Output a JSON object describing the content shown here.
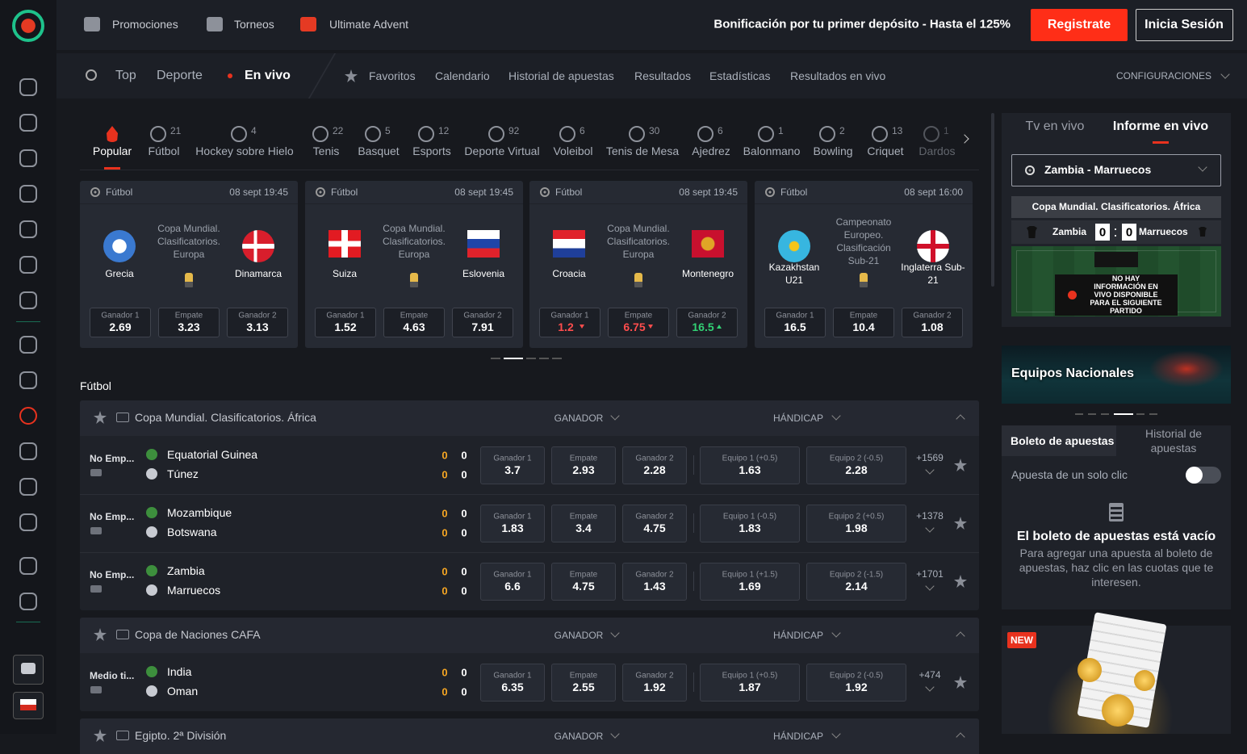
{
  "header": {
    "nav": [
      "Promociones",
      "Torneos",
      "Ultimate Advent"
    ],
    "bonus": "Bonificación por tu primer depósito - Hasta el 125%",
    "register": "Registrate",
    "login": "Inicia Sesión"
  },
  "subnav": {
    "main": [
      "Top",
      "Deporte",
      "En vivo"
    ],
    "links": [
      "Favoritos",
      "Calendario",
      "Historial de apuestas",
      "Resultados",
      "Estadísticas",
      "Resultados en vivo"
    ],
    "settings": "CONFIGURACIONES"
  },
  "sports": [
    {
      "name": "Popular"
    },
    {
      "name": "Fútbol",
      "count": 21
    },
    {
      "name": "Hockey sobre Hielo",
      "count": 4
    },
    {
      "name": "Tenis",
      "count": 22
    },
    {
      "name": "Basquet",
      "count": 5
    },
    {
      "name": "Esports",
      "count": 12
    },
    {
      "name": "Deporte Virtual",
      "count": 92
    },
    {
      "name": "Voleibol",
      "count": 6
    },
    {
      "name": "Tenis de Mesa",
      "count": 30
    },
    {
      "name": "Ajedrez",
      "count": 6
    },
    {
      "name": "Balonmano",
      "count": 1
    },
    {
      "name": "Bowling",
      "count": 2
    },
    {
      "name": "Criquet",
      "count": 13
    },
    {
      "name": "Dardos",
      "count": 1
    }
  ],
  "featured": [
    {
      "sport": "Fútbol",
      "date": "08 sept 19:45",
      "competition": "Copa Mundial. Clasificatorios. Europa",
      "team1": "Grecia",
      "team2": "Dinamarca",
      "odds": [
        {
          "label": "Ganador 1",
          "value": 2.69
        },
        {
          "label": "Empate",
          "value": 3.23
        },
        {
          "label": "Ganador 2",
          "value": 3.13
        }
      ]
    },
    {
      "sport": "Fútbol",
      "date": "08 sept 19:45",
      "competition": "Copa Mundial. Clasificatorios. Europa",
      "team1": "Suiza",
      "team2": "Eslovenia",
      "odds": [
        {
          "label": "Ganador 1",
          "value": 1.52
        },
        {
          "label": "Empate",
          "value": 4.63
        },
        {
          "label": "Ganador 2",
          "value": 7.91
        }
      ]
    },
    {
      "sport": "Fútbol",
      "date": "08 sept 19:45",
      "competition": "Copa Mundial. Clasificatorios. Europa",
      "team1": "Croacia",
      "team2": "Montenegro",
      "odds": [
        {
          "label": "Ganador 1",
          "value": 1.2,
          "trend": "down"
        },
        {
          "label": "Empate",
          "value": 6.75,
          "trend": "down"
        },
        {
          "label": "Ganador 2",
          "value": 16.5,
          "trend": "up"
        }
      ]
    },
    {
      "sport": "Fútbol",
      "date": "08 sept 16:00",
      "competition": "Campeonato Europeo. Clasificación Sub-21",
      "team1": "Kazakhstan U21",
      "team2": "Inglaterra Sub-21",
      "odds": [
        {
          "label": "Ganador 1",
          "value": 16.5
        },
        {
          "label": "Empate",
          "value": 10.4
        },
        {
          "label": "Ganador 2",
          "value": 1.08
        }
      ]
    }
  ],
  "section": "Fútbol",
  "leagues": [
    {
      "name": "Copa Mundial. Clasificatorios. África",
      "columns": [
        "GANADOR",
        "HÁNDICAP"
      ],
      "matches": [
        {
          "status": "No Emp...",
          "team1": "Equatorial Guinea",
          "team2": "Túnez",
          "score1": [
            0,
            0
          ],
          "score2": [
            0,
            0
          ],
          "odds": [
            {
              "label": "Ganador 1",
              "value": 3.7
            },
            {
              "label": "Empate",
              "value": 2.93
            },
            {
              "label": "Ganador 2",
              "value": 2.28
            },
            {
              "label": "Equipo 1 (+0.5)",
              "value": 1.63
            },
            {
              "label": "Equipo 2 (-0.5)",
              "value": 2.28
            }
          ],
          "more": "+1569"
        },
        {
          "status": "No Emp...",
          "team1": "Mozambique",
          "team2": "Botswana",
          "score1": [
            0,
            0
          ],
          "score2": [
            0,
            0
          ],
          "odds": [
            {
              "label": "Ganador 1",
              "value": 1.83
            },
            {
              "label": "Empate",
              "value": 3.4
            },
            {
              "label": "Ganador 2",
              "value": 4.75
            },
            {
              "label": "Equipo 1 (-0.5)",
              "value": 1.83
            },
            {
              "label": "Equipo 2 (+0.5)",
              "value": 1.98
            }
          ],
          "more": "+1378"
        },
        {
          "status": "No Emp...",
          "team1": "Zambia",
          "team2": "Marruecos",
          "score1": [
            0,
            0
          ],
          "score2": [
            0,
            0
          ],
          "odds": [
            {
              "label": "Ganador 1",
              "value": 6.6
            },
            {
              "label": "Empate",
              "value": 4.75
            },
            {
              "label": "Ganador 2",
              "value": 1.43
            },
            {
              "label": "Equipo 1 (+1.5)",
              "value": 1.69
            },
            {
              "label": "Equipo 2 (-1.5)",
              "value": 2.14
            }
          ],
          "more": "+1701"
        }
      ]
    },
    {
      "name": "Copa de Naciones CAFA",
      "columns": [
        "GANADOR",
        "HÁNDICAP"
      ],
      "matches": [
        {
          "status": "Medio ti...",
          "team1": "India",
          "team2": "Oman",
          "score1": [
            0,
            0
          ],
          "score2": [
            0,
            0
          ],
          "odds": [
            {
              "label": "Ganador 1",
              "value": 6.35
            },
            {
              "label": "Empate",
              "value": 2.55
            },
            {
              "label": "Ganador 2",
              "value": 1.92
            },
            {
              "label": "Equipo 1 (+0.5)",
              "value": 1.87
            },
            {
              "label": "Equipo 2 (-0.5)",
              "value": 1.92
            }
          ],
          "more": "+474"
        }
      ]
    },
    {
      "name": "Egipto. 2ª División",
      "columns": [
        "GANADOR",
        "HÁNDICAP"
      ],
      "matches": []
    }
  ],
  "live": {
    "tabs": [
      "Tv en vivo",
      "Informe en vivo"
    ],
    "match": "Zambia - Marruecos",
    "competition": "Copa Mundial. Clasificatorios. África",
    "team1": "Zambia",
    "team2": "Marruecos",
    "score": [
      0,
      0
    ],
    "message": "NO HAY INFORMACIÓN EN VIVO DISPONIBLE PARA EL SIGUIENTE PARTIDO"
  },
  "banner": "Equipos Nacionales",
  "betslip": {
    "tabs": [
      "Boleto de apuestas",
      "Historial de apuestas"
    ],
    "one_click": "Apuesta de un solo clic",
    "empty_title": "El boleto de apuestas está vacío",
    "empty_text": "Para agregar una apuesta al boleto de apuestas, haz clic en las cuotas que te interesen."
  },
  "promo": {
    "badge": "NEW"
  }
}
